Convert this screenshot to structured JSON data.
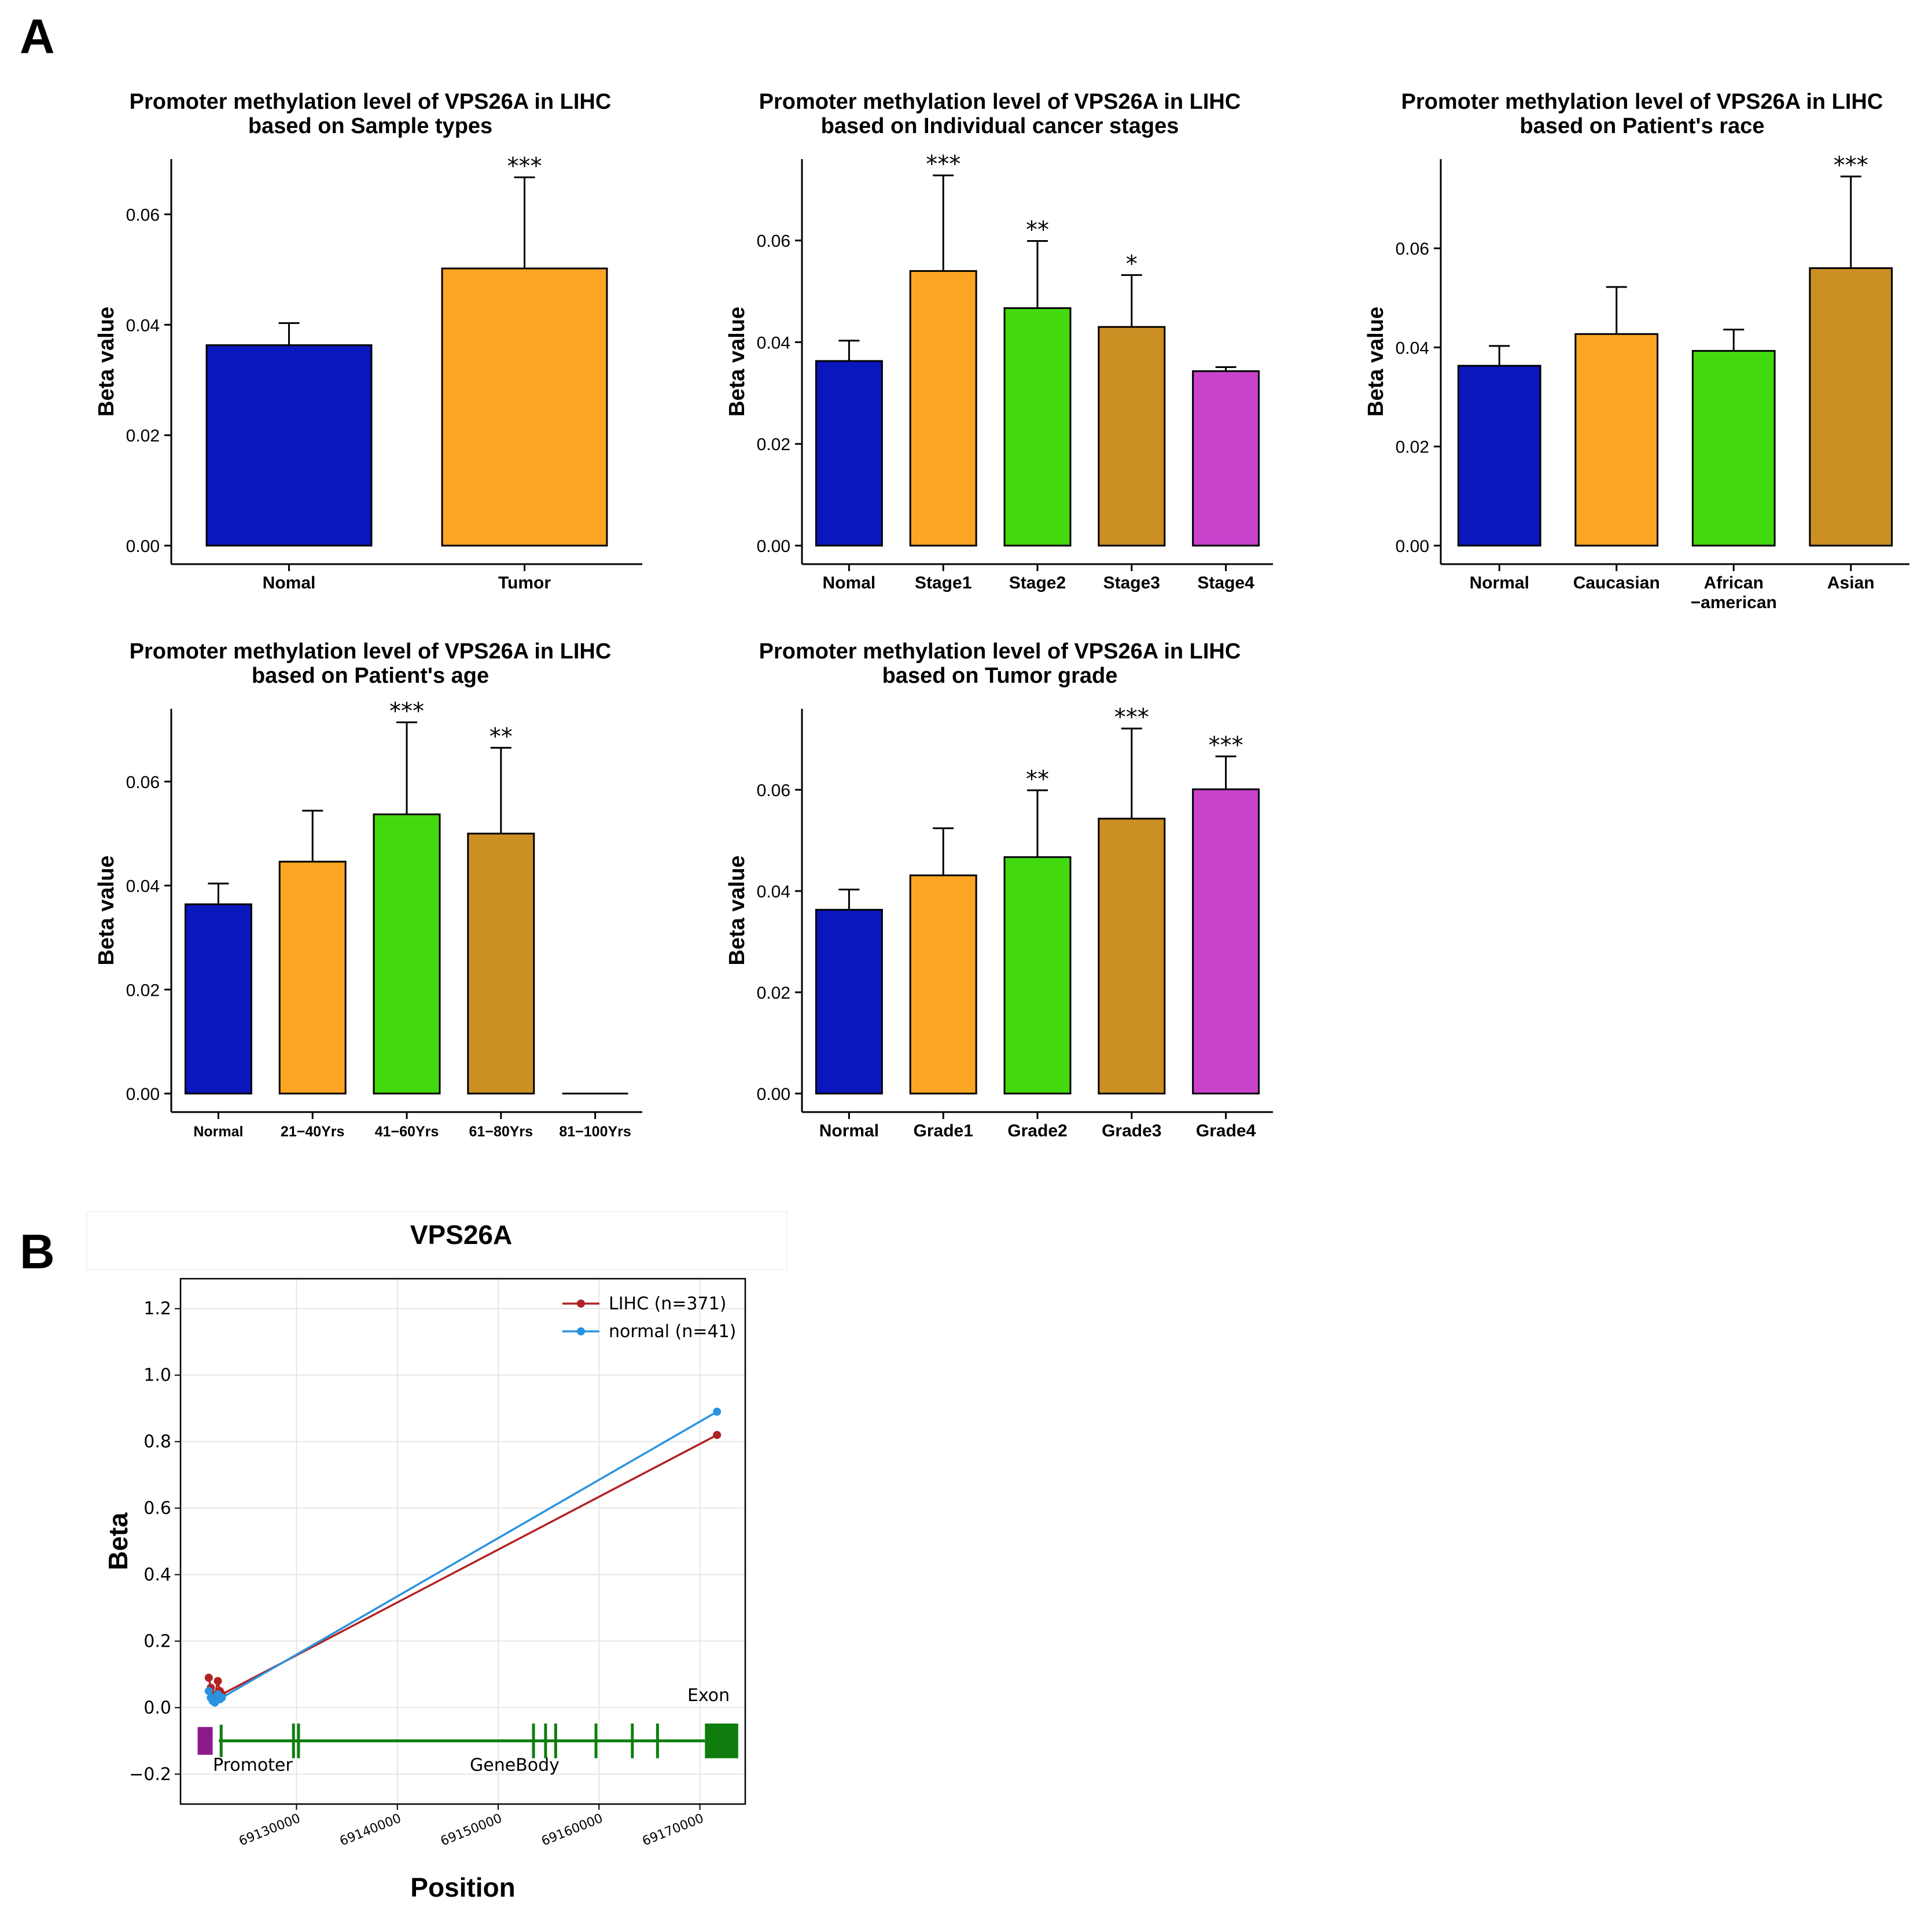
{
  "panel_labels": {
    "a": "A",
    "b": "B"
  },
  "colors": {
    "blue": "#0a17bd",
    "orange": "#fca423",
    "green": "#43d90f",
    "gold": "#cc8f23",
    "magenta": "#c942cc",
    "lihc": "#b22222",
    "normal": "#2a93e0",
    "gene": "#0e7d0e",
    "promoter": "#8b1a8b"
  },
  "chart_data": [
    {
      "type": "bar",
      "title": [
        "Promoter methylation level of VPS26A in LIHC",
        "based on Sample types"
      ],
      "ylabel": "Beta value",
      "ylim": [
        0,
        0.07
      ],
      "yticks": [
        "0.00",
        "0.02",
        "0.04",
        "0.06"
      ],
      "categories": [
        "Nomal",
        "Tumor"
      ],
      "values": [
        0.0363,
        0.0502
      ],
      "errors": [
        0.004,
        0.0165
      ],
      "significance": [
        "",
        "***"
      ],
      "bar_colors": [
        "#0a17bd",
        "#fca423"
      ]
    },
    {
      "type": "bar",
      "title": [
        "Promoter methylation level of VPS26A in LIHC",
        "based on Individual cancer stages"
      ],
      "ylabel": "Beta value",
      "ylim": [
        0,
        0.076
      ],
      "yticks": [
        "0.00",
        "0.02",
        "0.04",
        "0.06"
      ],
      "categories": [
        "Nomal",
        "Stage1",
        "Stage2",
        "Stage3",
        "Stage4"
      ],
      "values": [
        0.0363,
        0.054,
        0.0467,
        0.043,
        0.0343
      ],
      "errors": [
        0.004,
        0.0188,
        0.0132,
        0.0102,
        0.0008
      ],
      "significance": [
        "",
        "***",
        "**",
        "*",
        ""
      ],
      "bar_colors": [
        "#0a17bd",
        "#fca423",
        "#43d90f",
        "#cc8f23",
        "#c942cc"
      ]
    },
    {
      "type": "bar",
      "title": [
        "Promoter methylation level of VPS26A in LIHC",
        "based on Patient's race"
      ],
      "ylabel": "Beta value",
      "ylim": [
        0,
        0.078
      ],
      "yticks": [
        "0.00",
        "0.02",
        "0.04",
        "0.06"
      ],
      "categories": [
        "Normal",
        "Caucasian",
        "African\n−american",
        "Asian"
      ],
      "values": [
        0.0363,
        0.0427,
        0.0393,
        0.056
      ],
      "errors": [
        0.004,
        0.0095,
        0.0043,
        0.0185
      ],
      "significance": [
        "",
        "",
        "",
        "***"
      ],
      "bar_colors": [
        "#0a17bd",
        "#fca423",
        "#43d90f",
        "#cc8f23"
      ]
    },
    {
      "type": "bar",
      "title": [
        "Promoter methylation level of VPS26A in LIHC",
        "based on Patient's age"
      ],
      "ylabel": "Beta value",
      "ylim": [
        0,
        0.074
      ],
      "yticks": [
        "0.00",
        "0.02",
        "0.04",
        "0.06"
      ],
      "categories": [
        "Normal",
        "21−40Yrs",
        "41−60Yrs",
        "61−80Yrs",
        "81−100Yrs"
      ],
      "values": [
        0.0364,
        0.0446,
        0.0537,
        0.05,
        0.0
      ],
      "errors": [
        0.004,
        0.0098,
        0.0177,
        0.0165,
        0.0
      ],
      "significance": [
        "",
        "",
        "***",
        "**",
        ""
      ],
      "bar_colors": [
        "#0a17bd",
        "#fca423",
        "#43d90f",
        "#cc8f23",
        "#c942cc"
      ]
    },
    {
      "type": "bar",
      "title": [
        "Promoter methylation level of VPS26A in LIHC",
        "based on Tumor grade"
      ],
      "ylabel": "Beta value",
      "ylim": [
        0,
        0.076
      ],
      "yticks": [
        "0.00",
        "0.02",
        "0.04",
        "0.06"
      ],
      "categories": [
        "Normal",
        "Grade1",
        "Grade2",
        "Grade3",
        "Grade4"
      ],
      "values": [
        0.0363,
        0.0431,
        0.0467,
        0.0543,
        0.0601
      ],
      "errors": [
        0.004,
        0.0093,
        0.0132,
        0.0178,
        0.0065
      ],
      "significance": [
        "",
        "",
        "**",
        "***",
        "***"
      ],
      "bar_colors": [
        "#0a17bd",
        "#fca423",
        "#43d90f",
        "#cc8f23",
        "#c942cc"
      ]
    },
    {
      "type": "line",
      "title": "VPS26A",
      "xlabel": "Position",
      "ylabel": "Beta",
      "xlim": [
        69118500,
        69174500
      ],
      "ylim": [
        -0.29,
        1.29
      ],
      "xticks": [
        69130000,
        69140000,
        69150000,
        69160000,
        69170000
      ],
      "xtick_labels": [
        "69130000",
        "69140000",
        "69150000",
        "69160000",
        "69170000"
      ],
      "yticks": [
        -0.2,
        0.0,
        0.2,
        0.4,
        0.6,
        0.8,
        1.0,
        1.2
      ],
      "ytick_labels": [
        "−0.2",
        "0.0",
        "0.2",
        "0.4",
        "0.6",
        "0.8",
        "1.0",
        "1.2"
      ],
      "series": [
        {
          "name": "LIHC (n=371)",
          "color": "#b22222",
          "x": [
            69121300,
            69121500,
            69121700,
            69121900,
            69122200,
            69122400,
            69122600,
            69171700
          ],
          "y": [
            0.09,
            0.06,
            0.04,
            0.035,
            0.08,
            0.05,
            0.04,
            0.82
          ]
        },
        {
          "name": "normal (n=41)",
          "color": "#2a93e0",
          "x": [
            69121300,
            69121500,
            69121700,
            69121900,
            69122200,
            69122400,
            69122600,
            69171700
          ],
          "y": [
            0.05,
            0.03,
            0.02,
            0.015,
            0.04,
            0.025,
            0.03,
            0.89
          ]
        }
      ],
      "gene_model": {
        "baseline_y": -0.1,
        "promoter": {
          "x0": 69121000,
          "x1": 69122300
        },
        "exons": [
          69129700,
          69130200,
          69153500,
          69154700,
          69155700,
          69159700,
          69163300,
          69165800
        ],
        "last_exon": {
          "x0": 69170500,
          "x1": 69173800
        },
        "annotations": {
          "promoter": "Promoter",
          "genebody": "GeneBody",
          "exon": "Exon"
        }
      }
    }
  ]
}
